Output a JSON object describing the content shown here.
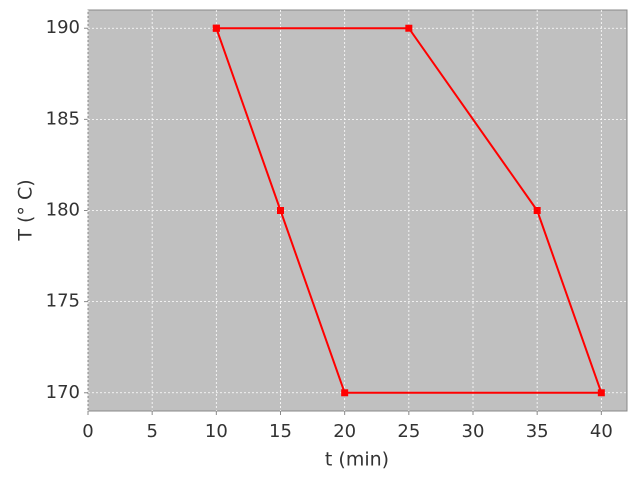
{
  "chart_data": {
    "type": "line",
    "x_label": "t (min)",
    "y_label": "T (° C)",
    "x": [
      10,
      15,
      20,
      40,
      35,
      25,
      10
    ],
    "series": [
      {
        "color": "#ff0000",
        "values": [
          190,
          180,
          170,
          170,
          180,
          190,
          190
        ]
      }
    ],
    "xlim": [
      0,
      42
    ],
    "xticks": [
      0,
      5,
      10,
      15,
      20,
      25,
      30,
      35,
      40
    ],
    "ylim": [
      169,
      191
    ],
    "yticks": [
      170,
      175,
      180,
      185,
      190
    ],
    "grid": true,
    "background": "#c0c0c0"
  }
}
